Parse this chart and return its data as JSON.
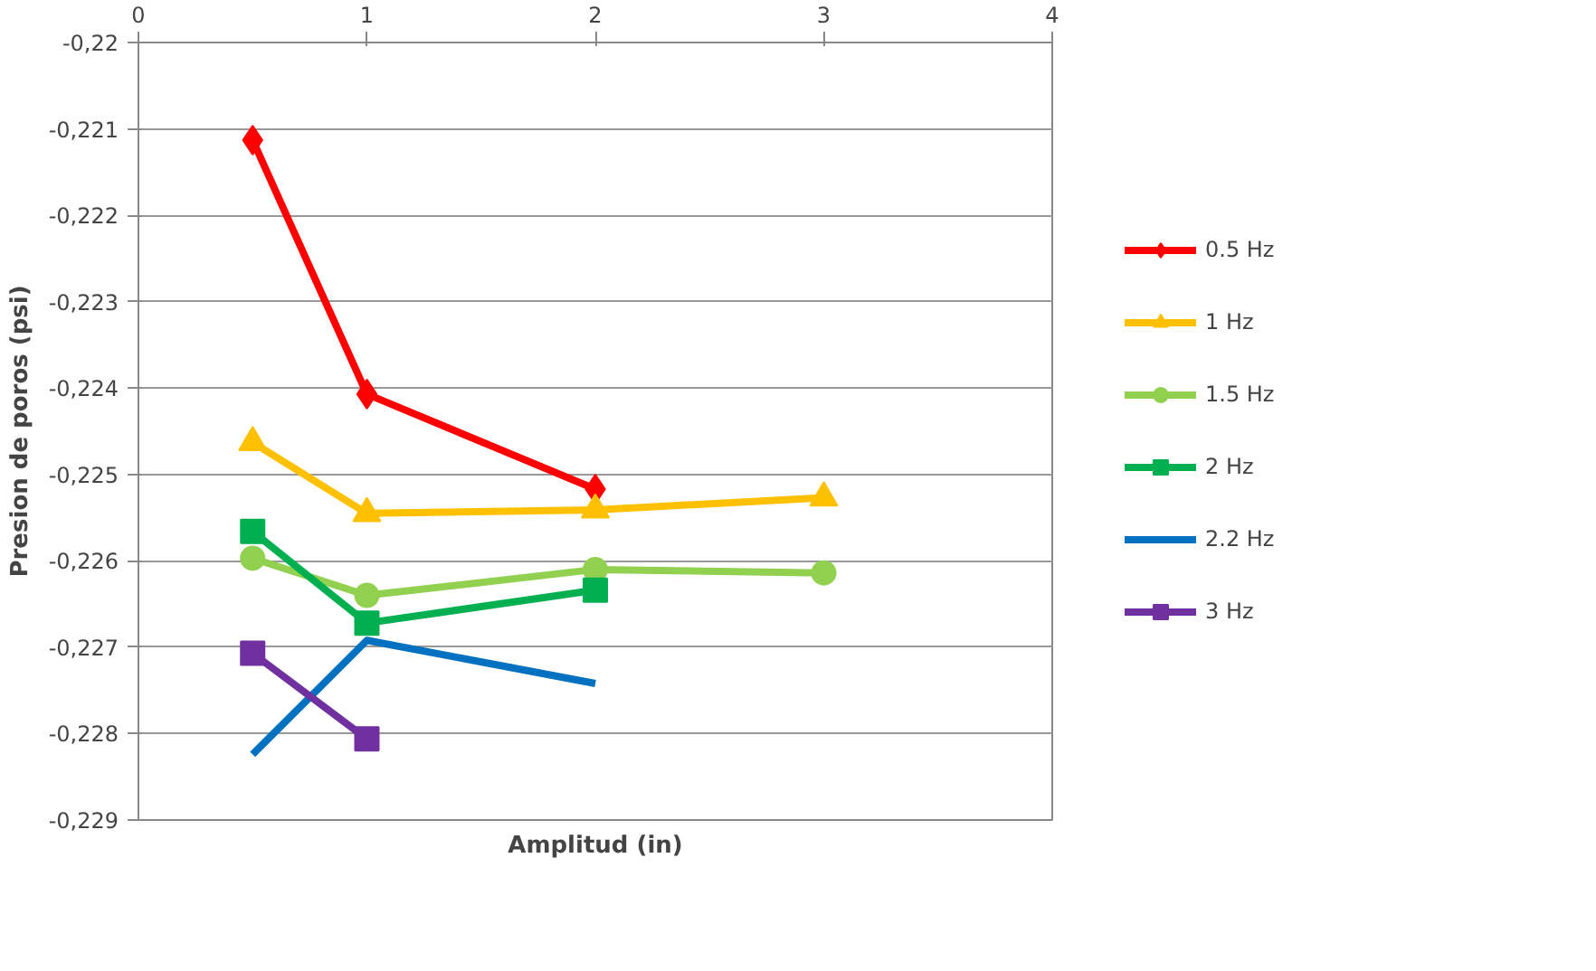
{
  "chart_data": {
    "type": "line",
    "xlabel": "Amplitud (in)",
    "ylabel": "Presion de poros (psi)",
    "xlim": [
      0,
      4
    ],
    "xticks": [
      0,
      1,
      2,
      3,
      4
    ],
    "ylim": [
      -0.229,
      -0.22
    ],
    "yticks": [
      {
        "value": -0.22,
        "label": "-0,22"
      },
      {
        "value": -0.221,
        "label": "-0,221"
      },
      {
        "value": -0.222,
        "label": "-0,222"
      },
      {
        "value": -0.223,
        "label": "-0,223"
      },
      {
        "value": -0.224,
        "label": "-0,224"
      },
      {
        "value": -0.225,
        "label": "-0,225"
      },
      {
        "value": -0.226,
        "label": "-0,226"
      },
      {
        "value": -0.227,
        "label": "-0,227"
      },
      {
        "value": -0.228,
        "label": "-0,228"
      },
      {
        "value": -0.229,
        "label": "-0,229"
      }
    ],
    "grid": "y",
    "legend": "right",
    "series": [
      {
        "name": "0.5 Hz",
        "color": "#ff0000",
        "marker": "diamond",
        "x": [
          0.5,
          1,
          2
        ],
        "values": [
          -0.22113,
          -0.22407,
          -0.22517
        ]
      },
      {
        "name": "1 Hz",
        "color": "#ffc000",
        "marker": "triangle",
        "x": [
          0.5,
          1,
          2,
          3
        ],
        "values": [
          -0.22463,
          -0.22545,
          -0.22541,
          -0.22527
        ]
      },
      {
        "name": "1.5 Hz",
        "color": "#92d050",
        "marker": "circle",
        "x": [
          0.5,
          1,
          2,
          3
        ],
        "values": [
          -0.22597,
          -0.2264,
          -0.2261,
          -0.22614
        ]
      },
      {
        "name": "2 Hz",
        "color": "#00b050",
        "marker": "square",
        "x": [
          0.5,
          1,
          2
        ],
        "values": [
          -0.22566,
          -0.22672,
          -0.22634
        ]
      },
      {
        "name": "2.2 Hz",
        "color": "#0070c0",
        "marker": "none",
        "x": [
          0.5,
          1,
          2
        ],
        "values": [
          -0.22824,
          -0.22692,
          -0.22742
        ]
      },
      {
        "name": "3 Hz",
        "color": "#7030a0",
        "marker": "square",
        "x": [
          0.5,
          1
        ],
        "values": [
          -0.22707,
          -0.22806
        ]
      }
    ]
  }
}
